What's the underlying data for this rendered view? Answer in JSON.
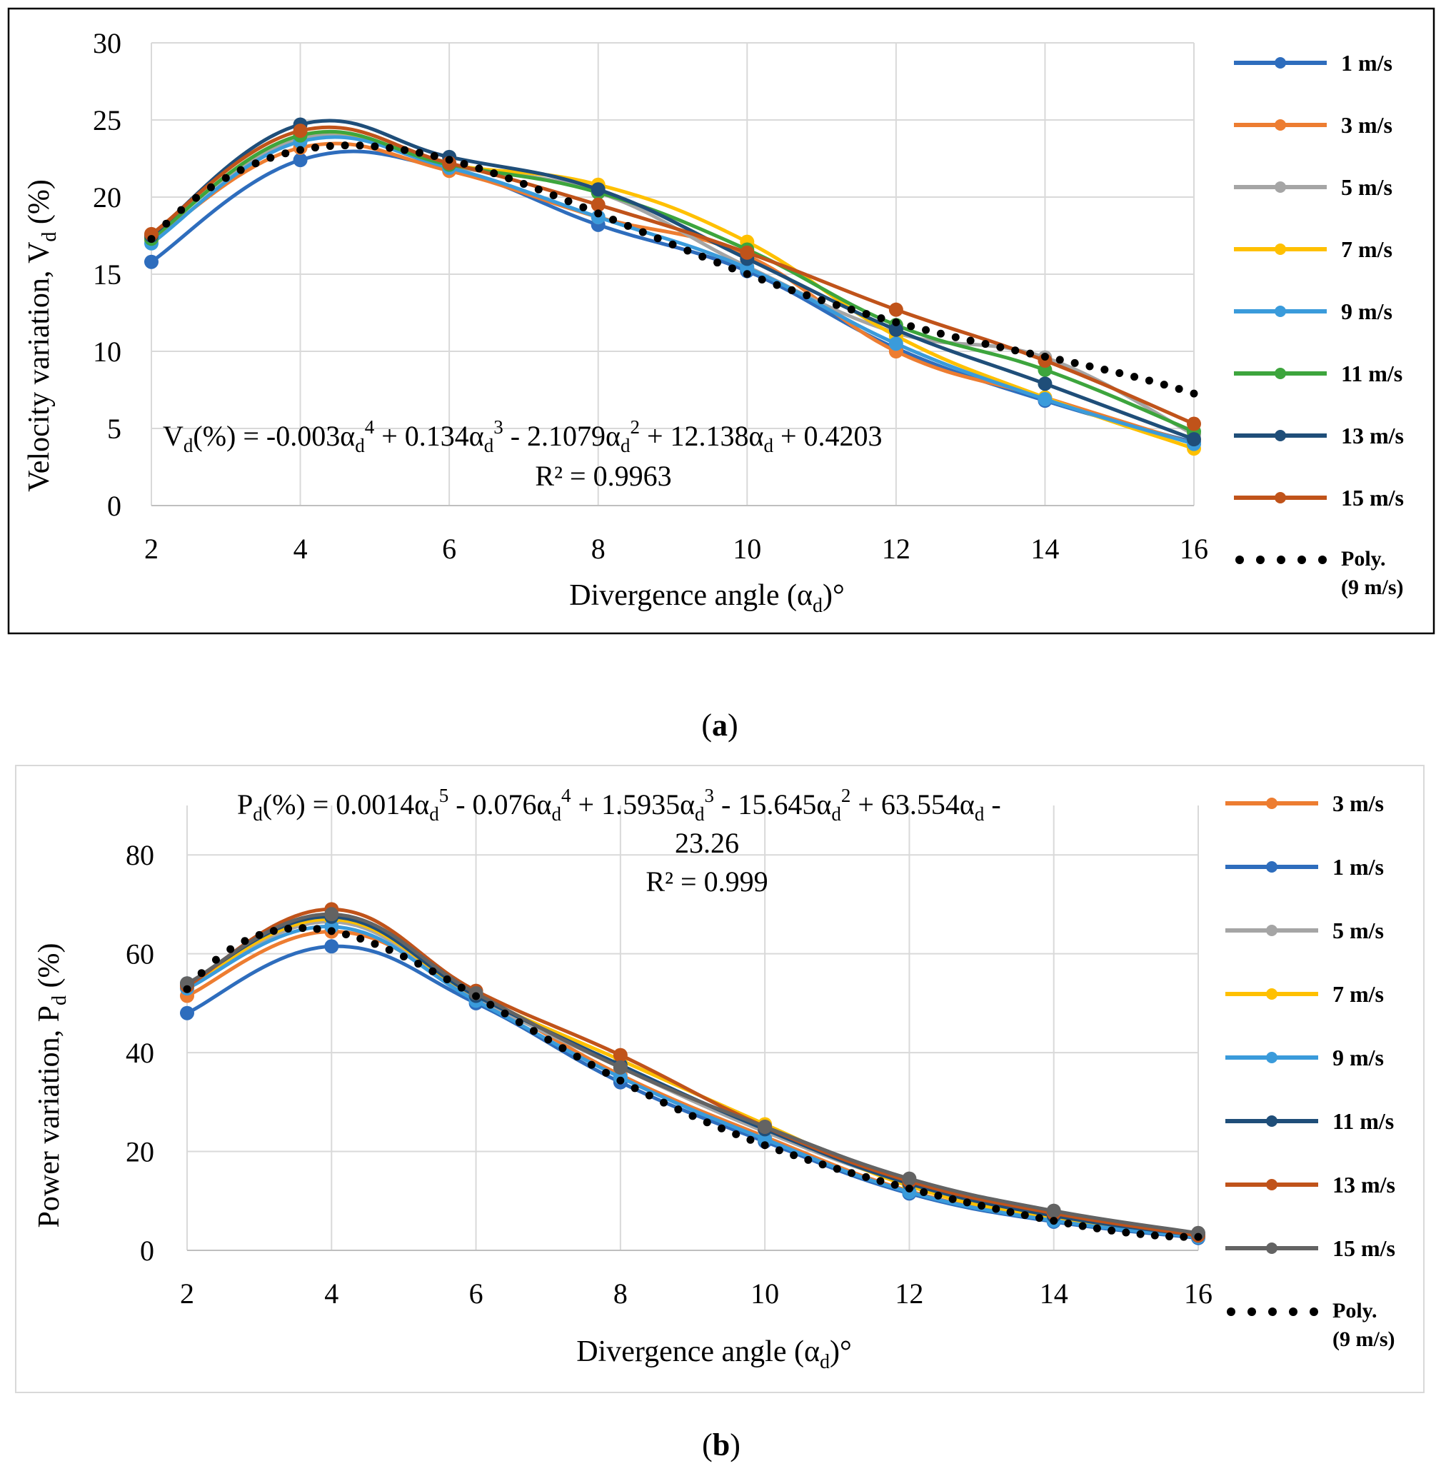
{
  "figure": {
    "caption_a": "a",
    "caption_b": "b"
  },
  "chart_data": [
    {
      "type": "line",
      "panel": "a",
      "xlabel": "Divergence angle (αd)°",
      "ylabel": "Velocity variation, Vd (%)",
      "xlim": [
        2,
        16
      ],
      "ylim": [
        0,
        30
      ],
      "xticks": [
        2,
        4,
        6,
        8,
        10,
        12,
        14,
        16
      ],
      "yticks": [
        0,
        5,
        10,
        15,
        20,
        25,
        30
      ],
      "grid": true,
      "legend_position": "right",
      "x": [
        2,
        4,
        6,
        8,
        10,
        12,
        14,
        16
      ],
      "series": [
        {
          "name": "1 m/s",
          "color": "#2e6dbd",
          "values": [
            15.8,
            22.4,
            21.8,
            18.2,
            15.2,
            10.2,
            6.8,
            4.1
          ]
        },
        {
          "name": "3 m/s",
          "color": "#ed7d31",
          "values": [
            17.2,
            23.2,
            21.7,
            18.7,
            16.2,
            10.0,
            7.0,
            4.0
          ]
        },
        {
          "name": "5 m/s",
          "color": "#a5a5a5",
          "values": [
            17.4,
            23.8,
            22.0,
            20.3,
            15.5,
            11.2,
            9.6,
            4.6
          ]
        },
        {
          "name": "7 m/s",
          "color": "#ffc000",
          "values": [
            17.3,
            24.0,
            22.1,
            20.8,
            17.1,
            11.0,
            7.0,
            3.7
          ]
        },
        {
          "name": "9 m/s",
          "color": "#3a9bdb",
          "values": [
            17.0,
            23.6,
            21.9,
            18.7,
            15.4,
            10.5,
            6.9,
            4.0
          ]
        },
        {
          "name": "11 m/s",
          "color": "#3da53d",
          "values": [
            17.3,
            24.0,
            22.1,
            20.3,
            16.6,
            11.7,
            8.8,
            4.8
          ]
        },
        {
          "name": "13 m/s",
          "color": "#1f4e79",
          "values": [
            17.5,
            24.7,
            22.6,
            20.5,
            16.0,
            11.4,
            7.9,
            4.3
          ]
        },
        {
          "name": "15 m/s",
          "color": "#c0531a",
          "values": [
            17.6,
            24.3,
            22.2,
            19.5,
            16.4,
            12.7,
            9.4,
            5.3
          ]
        }
      ],
      "trendline": {
        "name": "Poly. (9 m/s)",
        "name_line1": "Poly.",
        "name_line2": "(9 m/s)",
        "type": "polynomial-4",
        "coefficients": [
          0.4203,
          12.138,
          -2.1079,
          0.134,
          -0.003
        ]
      },
      "equation_text": "Vd (%) = -0.003αd⁴ + 0.134αd³ - 2.1079αd² + 12.138αd + 0.4203",
      "eq_lhs": "(%) = -0.003α",
      "eq_t1": " + 0.134α",
      "eq_t2": " - 2.1079α",
      "eq_t3": " + 12.138α",
      "eq_t4": " + 0.4203",
      "eq_sub": "d",
      "eq_var": "V",
      "r_squared_text": "R² = 0.9963"
    },
    {
      "type": "line",
      "panel": "b",
      "xlabel": "Divergence angle (αd)°",
      "ylabel": "Power variation, Pd (%)",
      "xlim": [
        2,
        16
      ],
      "ylim": [
        0,
        90
      ],
      "xticks": [
        2,
        4,
        6,
        8,
        10,
        12,
        14,
        16
      ],
      "yticks": [
        0,
        20,
        40,
        60,
        80
      ],
      "grid": true,
      "legend_position": "right",
      "x": [
        2,
        4,
        6,
        8,
        10,
        12,
        14,
        16
      ],
      "series": [
        {
          "name": "3 m/s",
          "color": "#ed7d31",
          "values": [
            51.5,
            64.5,
            51.5,
            35.5,
            23.0,
            12.0,
            6.0,
            2.8
          ]
        },
        {
          "name": "1 m/s",
          "color": "#2e6dbd",
          "values": [
            48.0,
            61.5,
            50.0,
            34.0,
            22.0,
            11.5,
            5.8,
            2.5
          ]
        },
        {
          "name": "5 m/s",
          "color": "#a5a5a5",
          "values": [
            53.0,
            66.5,
            51.0,
            37.0,
            24.0,
            13.5,
            7.0,
            3.0
          ]
        },
        {
          "name": "7 m/s",
          "color": "#ffc000",
          "values": [
            53.5,
            67.0,
            51.5,
            38.5,
            25.5,
            13.0,
            6.5,
            2.9
          ]
        },
        {
          "name": "9 m/s",
          "color": "#3a9bdb",
          "values": [
            53.0,
            65.5,
            50.5,
            35.0,
            22.5,
            11.8,
            6.0,
            2.7
          ]
        },
        {
          "name": "11 m/s",
          "color": "#1f4e79",
          "values": [
            54.0,
            67.5,
            51.5,
            37.5,
            24.5,
            13.5,
            7.0,
            3.0
          ]
        },
        {
          "name": "13 m/s",
          "color": "#c0531a",
          "values": [
            53.5,
            69.0,
            52.5,
            39.5,
            25.0,
            14.0,
            7.5,
            3.0
          ]
        },
        {
          "name": "15 m/s",
          "color": "#636363",
          "values": [
            54.0,
            68.0,
            52.0,
            37.0,
            25.0,
            14.5,
            8.0,
            3.5
          ]
        }
      ],
      "trendline": {
        "name": "Poly. (9 m/s)",
        "name_line1": "Poly.",
        "name_line2": "(9 m/s)",
        "type": "polynomial-5",
        "coefficients": [
          -23.26,
          63.554,
          -15.645,
          1.5935,
          -0.076,
          0.0014
        ]
      },
      "equation_text": "Pd (%) = 0.0014αd⁵ - 0.076αd⁴ + 1.5935αd³ - 15.645αd² + 63.554αd - 23.26",
      "eq_lhs": "(%) = 0.0014α",
      "eq_t1": " - 0.076α",
      "eq_t2": " + 1.5935α",
      "eq_t3": " - 15.645α",
      "eq_t4": " + 63.554α",
      "eq_t5": " -",
      "eq_line2": "23.26",
      "eq_sub": "d",
      "eq_var": "P",
      "r_squared_text": "R² = 0.999"
    }
  ]
}
